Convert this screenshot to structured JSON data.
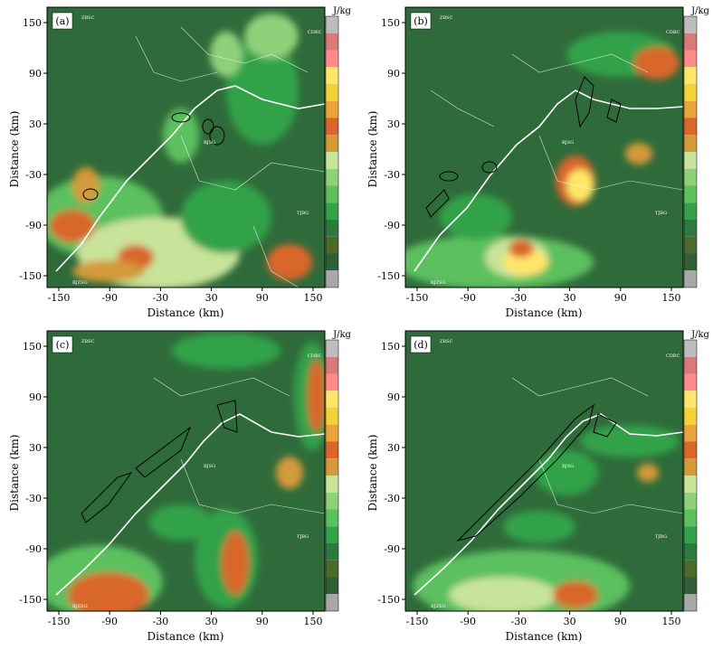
{
  "colorbar": {
    "unit": "J/kg",
    "colors": [
      "#a8a8a8",
      "#2f5e37",
      "#4a6b2c",
      "#2c7a3f",
      "#33a24a",
      "#5cc05e",
      "#8fd07a",
      "#c8e39a",
      "#d49a3a",
      "#d9662a",
      "#e8a33a",
      "#f2d236",
      "#ffe66b",
      "#ff8a8a",
      "#d97a7a",
      "#bdbdbd"
    ]
  },
  "axes": {
    "xlabel": "Distance (km)",
    "ylabel": "Distance (km)",
    "xticks": [
      "-150",
      "-90",
      "-30",
      "30",
      "90",
      "150"
    ],
    "yticks": [
      "150",
      "90",
      "30",
      "-30",
      "-90",
      "-150"
    ]
  },
  "panels": [
    {
      "id": "a",
      "label": "(a)",
      "stations": [
        "ZBSC",
        "CDBC",
        "BJSG",
        "TJBG",
        "BJZSG"
      ]
    },
    {
      "id": "b",
      "label": "(b)",
      "stations": [
        "ZBSC",
        "CDBC",
        "BJSG",
        "TJBG",
        "BJZSG"
      ]
    },
    {
      "id": "c",
      "label": "(c)",
      "stations": [
        "ZBSC",
        "CDBC",
        "BJSG",
        "TJBG",
        "BJZSG"
      ]
    },
    {
      "id": "d",
      "label": "(d)",
      "stations": [
        "ZBSC",
        "CDBC",
        "BJSG",
        "TJBG",
        "BJZSG"
      ]
    }
  ],
  "colors": {
    "background": "#2f6b3a",
    "frame": "#000000",
    "boundary": "#ffffff",
    "contour": "#000000"
  }
}
